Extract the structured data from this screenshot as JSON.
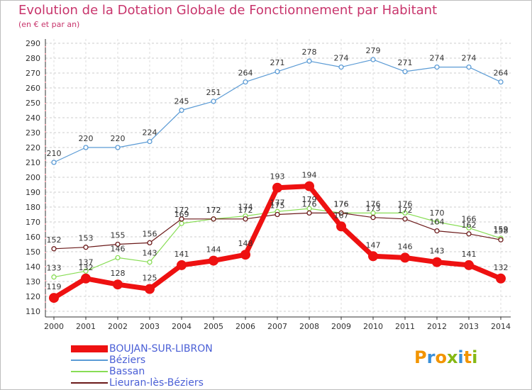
{
  "header": {
    "title": "Evolution de la Dotation Globale de Fonctionnement par Habitant",
    "subtitle": "(en € et par an)"
  },
  "brand": {
    "logo_text": "Proxiti"
  },
  "chart_data": {
    "type": "line",
    "title": "Evolution de la Dotation Globale de Fonctionnement par Habitant",
    "subtitle": "(en € et par an)",
    "xlabel": "",
    "ylabel": "",
    "x": [
      "2000",
      "2001",
      "2002",
      "2003",
      "2004",
      "2005",
      "2006",
      "2007",
      "2008",
      "2009",
      "2010",
      "2011",
      "2012",
      "2013",
      "2014"
    ],
    "ylim": [
      110,
      290
    ],
    "yticks": [
      110,
      120,
      130,
      140,
      150,
      160,
      170,
      180,
      190,
      200,
      210,
      220,
      230,
      240,
      250,
      260,
      270,
      280,
      290
    ],
    "grid": "horizontal dashed",
    "legend_position": "bottom-left",
    "series": [
      {
        "name": "BOUJAN-SUR-LIBRON",
        "color": "#ee1111",
        "emphasis": true,
        "values": [
          119,
          132,
          128,
          125,
          141,
          144,
          148,
          193,
          194,
          167,
          147,
          146,
          143,
          141,
          132
        ],
        "labels": [
          "119",
          "132",
          "128",
          "125",
          "141",
          "144",
          "148",
          "193",
          "194",
          "167",
          "147",
          "146",
          "143",
          "141",
          "132"
        ]
      },
      {
        "name": "Béziers",
        "color": "#5b9bd5",
        "values": [
          210,
          220,
          220,
          224,
          245,
          251,
          264,
          271,
          278,
          274,
          279,
          271,
          274,
          274,
          264
        ],
        "labels": [
          "210",
          "220",
          "220",
          "224",
          "245",
          "251",
          "264",
          "271",
          "278",
          "274",
          "279",
          "271",
          "274",
          "274",
          "264"
        ]
      },
      {
        "name": "Bassan",
        "color": "#88dd55",
        "values": [
          133,
          137,
          146,
          143,
          169,
          172,
          174,
          177,
          179,
          176,
          176,
          176,
          170,
          166,
          159
        ],
        "labels": [
          "133",
          "137",
          "146",
          "143",
          "169",
          "172",
          "174",
          "177",
          "179",
          "176",
          "176",
          "176",
          "170",
          "166",
          "159"
        ]
      },
      {
        "name": "Lieuran-lès-Béziers",
        "color": "#6b1a1a",
        "values": [
          152,
          153,
          155,
          156,
          172,
          172,
          172,
          175,
          176,
          176,
          173,
          172,
          164,
          162,
          158
        ],
        "labels": [
          "152",
          "153",
          "155",
          "156",
          "172",
          "172",
          "172",
          "175",
          "176",
          "176",
          "173",
          "172",
          "164",
          "162",
          "158"
        ]
      }
    ]
  }
}
